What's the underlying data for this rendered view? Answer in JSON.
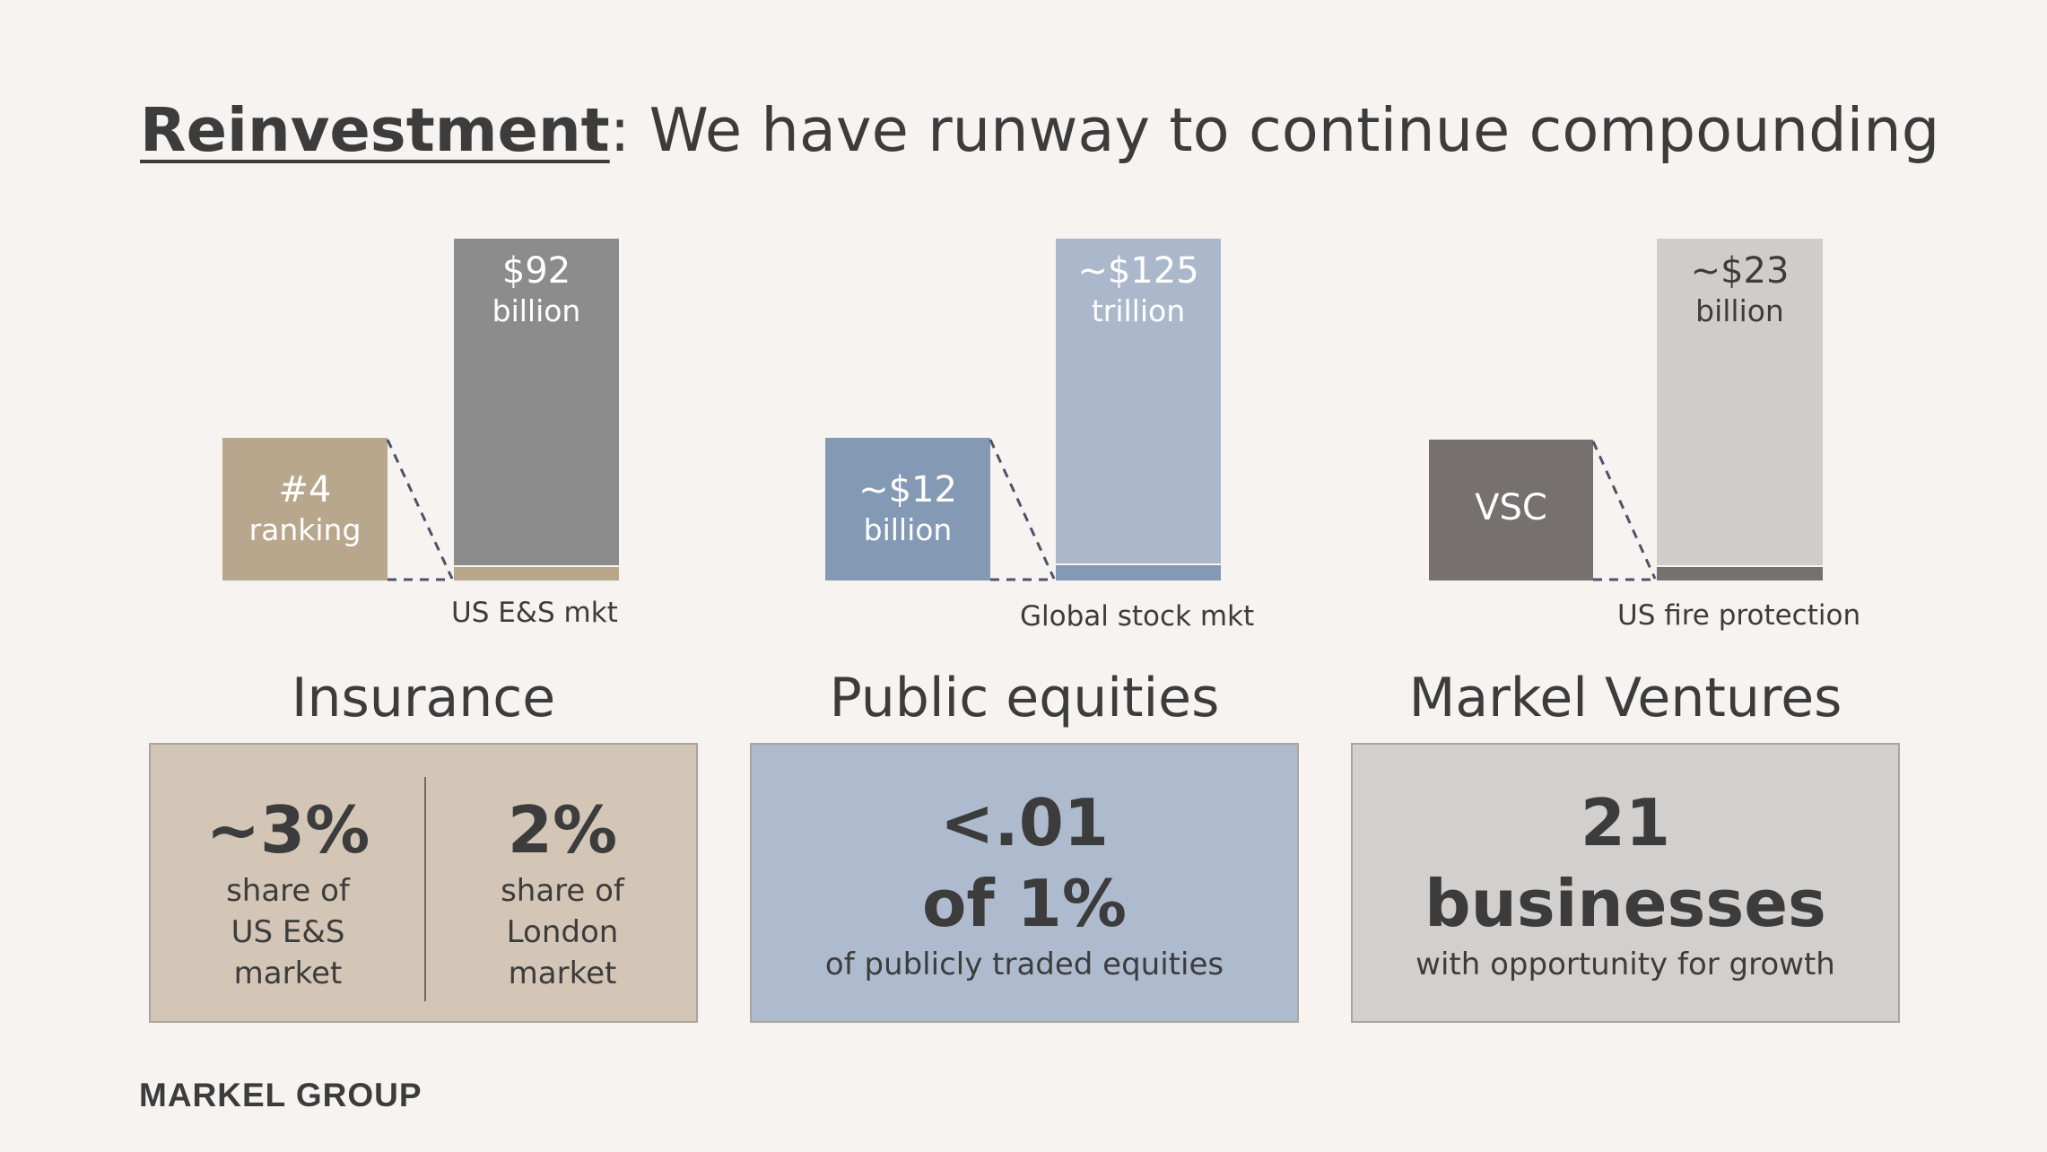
{
  "title": {
    "bold": "Reinvestment",
    "rest": ": We have runway to continue compounding"
  },
  "panels": {
    "insurance": {
      "small_value": "#4",
      "small_unit": "ranking",
      "bar_value": "$92",
      "bar_unit": "billion",
      "market_label": "US E&S mkt",
      "segment": "Insurance",
      "stats": [
        {
          "value": "~3%",
          "lines": [
            "share of",
            "US E&S",
            "market"
          ]
        },
        {
          "value": "2%",
          "lines": [
            "share of",
            "London",
            "market"
          ]
        }
      ]
    },
    "equities": {
      "small_value": "~$12",
      "small_unit": "billion",
      "bar_value": "~$125",
      "bar_unit": "trillion",
      "market_label": "Global stock mkt",
      "segment": "Public equities",
      "big_line1": "<.01",
      "big_line2": "of 1%",
      "desc": "of publicly traded equities"
    },
    "ventures": {
      "small_value": "VSC",
      "bar_value": "~$23",
      "bar_unit": "billion",
      "market_label": "US fire protection",
      "segment": "Markel Ventures",
      "big_line1": "21",
      "big_line2": "businesses",
      "desc": "with opportunity for growth"
    }
  },
  "colors": {
    "background": "#f6f3f0",
    "insurance_small": "#b9a78d",
    "insurance_bar": "#8c8c8c",
    "insurance_box": "#d3c6b6",
    "equities_small": "#8499b4",
    "equities_bar": "#abb8cb",
    "equities_box": "#aebbcf",
    "ventures_small": "#76706e",
    "ventures_bar": "#cfcdcc",
    "ventures_box": "#d2d0cf",
    "text": "#3c3c3c",
    "dashed_line": "#4a5468"
  },
  "footer": {
    "logo": "MARKEL GROUP"
  }
}
